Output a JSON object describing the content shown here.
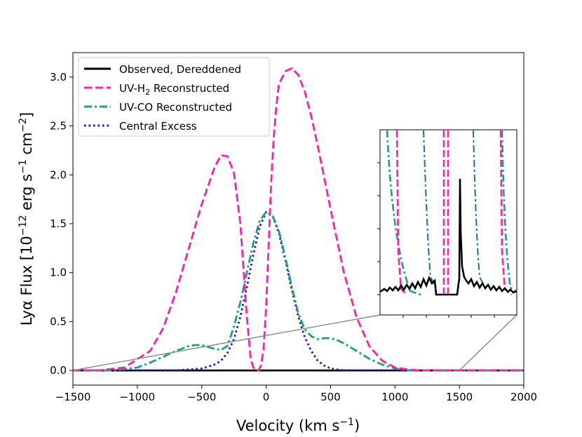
{
  "chart_data": {
    "type": "line",
    "title": "",
    "xlabel_main": "Velocity (km s",
    "xlabel_sup": "−1",
    "xlabel_end": ")",
    "ylabel_main": "Lyα Flux [10",
    "ylabel_sup1": "−12",
    "ylabel_mid": " erg s",
    "ylabel_sup2": "−1",
    "ylabel_mid2": " cm",
    "ylabel_sup3": "−2",
    "ylabel_end": "]",
    "xlim": [
      -1500,
      2000
    ],
    "ylim": [
      -0.15,
      3.25
    ],
    "x_ticks": [
      -1500,
      -1000,
      -500,
      0,
      500,
      1000,
      1500,
      2000
    ],
    "x_tick_labels": [
      "−1500",
      "−1000",
      "−500",
      "0",
      "500",
      "1000",
      "1500",
      "2000"
    ],
    "y_ticks": [
      0.0,
      0.5,
      1.0,
      1.5,
      2.0,
      2.5,
      3.0
    ],
    "y_tick_labels": [
      "0.0",
      "0.5",
      "1.0",
      "1.5",
      "2.0",
      "2.5",
      "3.0"
    ],
    "legend_position": "top-left",
    "series": [
      {
        "name": "Observed, Dereddened",
        "legend_label": "Observed, Dereddened",
        "color": "#000000",
        "style": "solid",
        "description": "near zero flux across velocity range",
        "x": [
          -1500,
          -500,
          0,
          500,
          1000,
          1500,
          2000
        ],
        "values": [
          0.0,
          0.0,
          0.0,
          0.0,
          0.0,
          0.0,
          0.0
        ]
      },
      {
        "name": "UV-H2 Reconstructed",
        "legend_label": "UV-H",
        "legend_sub": "2",
        "legend_label_end": " Reconstructed",
        "color": "#ff1fa8",
        "style": "dashed",
        "x": [
          -1500,
          -1300,
          -1100,
          -900,
          -800,
          -700,
          -600,
          -500,
          -400,
          -350,
          -300,
          -250,
          -200,
          -150,
          -120,
          -100,
          -80,
          -60,
          -40,
          -20,
          0,
          20,
          40,
          60,
          80,
          100,
          150,
          200,
          250,
          300,
          350,
          400,
          500,
          600,
          700,
          800,
          900,
          1000,
          1100,
          1200,
          1400,
          1600,
          2000
        ],
        "values": [
          0.0,
          0.0,
          0.03,
          0.2,
          0.43,
          0.8,
          1.25,
          1.7,
          2.08,
          2.2,
          2.19,
          2.02,
          1.5,
          0.55,
          0.12,
          0.03,
          0.0,
          0.0,
          0.05,
          0.22,
          0.65,
          1.3,
          1.95,
          2.4,
          2.72,
          2.93,
          3.06,
          3.09,
          3.02,
          2.85,
          2.6,
          2.3,
          1.65,
          1.02,
          0.55,
          0.25,
          0.1,
          0.03,
          0.01,
          0.0,
          0.0,
          0.0,
          0.0
        ]
      },
      {
        "name": "UV-CO Reconstructed",
        "legend_label": "UV-CO Reconstructed",
        "color": "#1aa37a",
        "style": "dashdot",
        "x": [
          -1500,
          -1200,
          -1000,
          -900,
          -800,
          -700,
          -600,
          -550,
          -500,
          -450,
          -400,
          -350,
          -300,
          -250,
          -200,
          -150,
          -100,
          -50,
          0,
          50,
          100,
          150,
          200,
          250,
          300,
          350,
          400,
          450,
          500,
          550,
          600,
          700,
          800,
          900,
          1000,
          1100,
          1500,
          2000
        ],
        "values": [
          0.0,
          0.0,
          0.03,
          0.08,
          0.14,
          0.2,
          0.25,
          0.26,
          0.26,
          0.24,
          0.22,
          0.21,
          0.25,
          0.45,
          0.7,
          1.0,
          1.3,
          1.53,
          1.62,
          1.58,
          1.42,
          1.15,
          0.85,
          0.58,
          0.42,
          0.35,
          0.32,
          0.33,
          0.33,
          0.31,
          0.28,
          0.2,
          0.12,
          0.06,
          0.02,
          0.0,
          0.0,
          0.0
        ]
      },
      {
        "name": "Central Excess",
        "legend_label": "Central Excess",
        "color": "#2b00d4",
        "style": "dotted",
        "x": [
          -1500,
          -700,
          -600,
          -500,
          -400,
          -350,
          -300,
          -250,
          -200,
          -150,
          -100,
          -50,
          0,
          50,
          100,
          150,
          200,
          250,
          300,
          350,
          400,
          450,
          500,
          600,
          700,
          2000
        ],
        "values": [
          0.0,
          0.0,
          0.01,
          0.02,
          0.06,
          0.1,
          0.18,
          0.32,
          0.55,
          0.85,
          1.18,
          1.47,
          1.62,
          1.58,
          1.4,
          1.12,
          0.82,
          0.55,
          0.34,
          0.2,
          0.1,
          0.05,
          0.02,
          0.0,
          0.0,
          0.0
        ]
      }
    ],
    "inset": {
      "description": "zoom on y ≈ 0 region, velocity -1500 to 1500",
      "series_colors": [
        "#000000",
        "#ff1fa8",
        "#1aa37a",
        "#1b6fa8"
      ]
    }
  }
}
